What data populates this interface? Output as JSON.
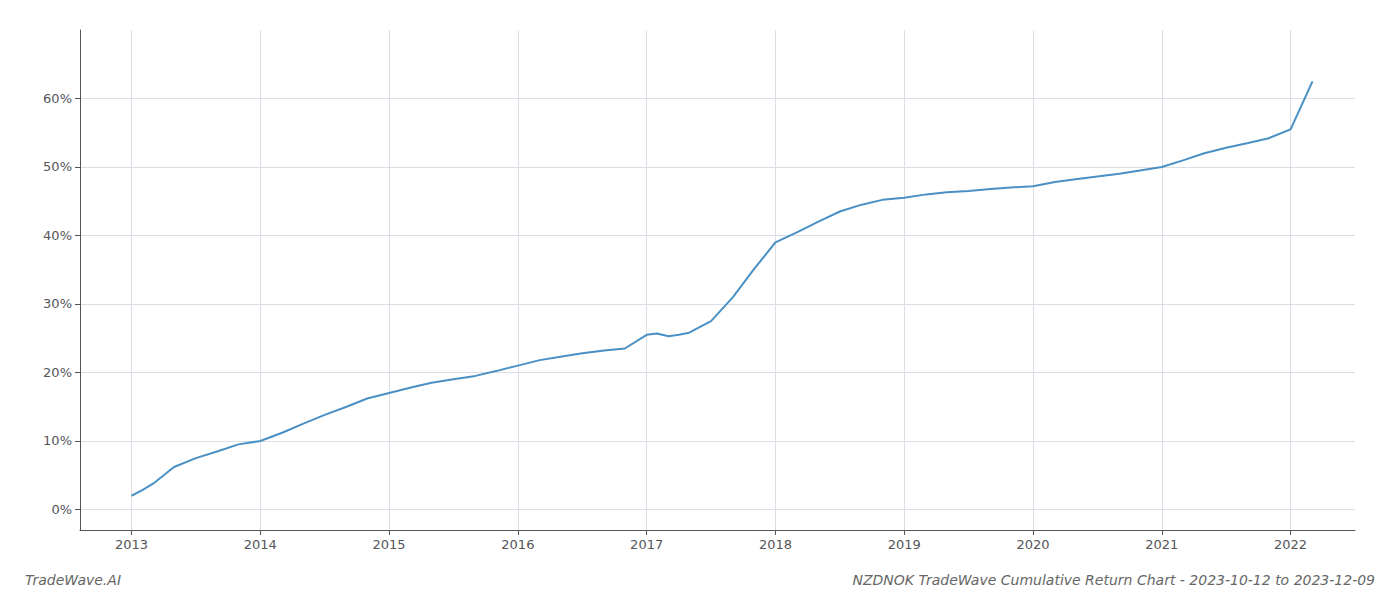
{
  "chart_data": {
    "type": "line",
    "title": "NZDNOK TradeWave Cumulative Return Chart - 2023-10-12 to 2023-12-09",
    "annotations": [
      "TradeWave.AI"
    ],
    "color": "#4a90c4",
    "grid": true,
    "xlim": [
      2012.6,
      2022.5
    ],
    "ylim": [
      -3,
      70
    ],
    "xticks": [
      2013,
      2014,
      2015,
      2016,
      2017,
      2018,
      2019,
      2020,
      2021,
      2022
    ],
    "yticks": [
      {
        "value": 0,
        "label": "0%"
      },
      {
        "value": 10,
        "label": "10%"
      },
      {
        "value": 20,
        "label": "20%"
      },
      {
        "value": 30,
        "label": "30%"
      },
      {
        "value": 40,
        "label": "40%"
      },
      {
        "value": 50,
        "label": "50%"
      },
      {
        "value": 60,
        "label": "60%"
      }
    ],
    "x": [
      2013.0,
      2013.08,
      2013.17,
      2013.25,
      2013.33,
      2013.5,
      2013.67,
      2013.83,
      2014.0,
      2014.17,
      2014.33,
      2014.5,
      2014.67,
      2014.83,
      2015.0,
      2015.17,
      2015.33,
      2015.5,
      2015.67,
      2015.83,
      2016.0,
      2016.17,
      2016.33,
      2016.5,
      2016.67,
      2016.83,
      2017.0,
      2017.08,
      2017.17,
      2017.25,
      2017.33,
      2017.5,
      2017.67,
      2017.83,
      2018.0,
      2018.17,
      2018.33,
      2018.5,
      2018.67,
      2018.83,
      2019.0,
      2019.17,
      2019.33,
      2019.5,
      2019.67,
      2019.83,
      2020.0,
      2020.17,
      2020.33,
      2020.5,
      2020.67,
      2020.83,
      2021.0,
      2021.17,
      2021.33,
      2021.5,
      2021.67,
      2021.83,
      2022.0,
      2022.17
    ],
    "values": [
      2.0,
      2.8,
      3.8,
      5.0,
      6.2,
      7.5,
      8.5,
      9.5,
      10.0,
      11.2,
      12.5,
      13.8,
      15.0,
      16.2,
      17.0,
      17.8,
      18.5,
      19.0,
      19.5,
      20.2,
      21.0,
      21.8,
      22.3,
      22.8,
      23.2,
      23.5,
      25.5,
      25.7,
      25.3,
      25.5,
      25.8,
      27.5,
      31.0,
      35.0,
      39.0,
      40.5,
      42.0,
      43.5,
      44.5,
      45.2,
      45.5,
      46.0,
      46.3,
      46.5,
      46.8,
      47.0,
      47.2,
      47.8,
      48.2,
      48.6,
      49.0,
      49.5,
      50.0,
      51.0,
      52.0,
      52.8,
      53.5,
      54.2,
      55.5,
      62.5
    ]
  }
}
